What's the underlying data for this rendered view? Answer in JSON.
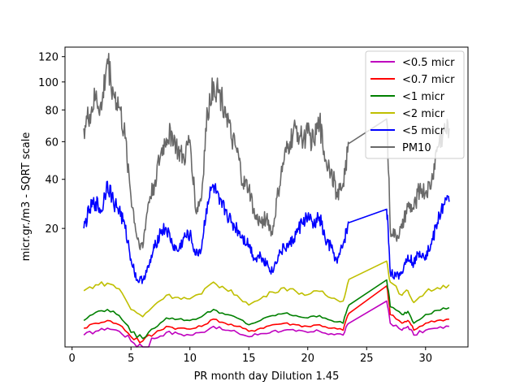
{
  "chart_data": {
    "type": "line",
    "xlabel": "PR month day  Dilution 1.45",
    "ylabel": "micr.gr./m3 - SQRT scale",
    "xlim": [
      -0.6,
      33.6
    ],
    "ylim": [
      0,
      128
    ],
    "y_scale": "sqrt",
    "x_ticks": [
      0,
      5,
      10,
      15,
      20,
      25,
      30
    ],
    "y_ticks": [
      20,
      40,
      60,
      80,
      100,
      120
    ],
    "grid": false,
    "legend_placement": "top-right",
    "series": [
      {
        "name": "<0.5 micr",
        "color": "#bf00bf",
        "x": [
          1,
          2,
          3,
          4,
          5,
          6,
          7,
          8,
          9,
          10,
          11,
          12,
          13,
          14,
          15,
          16,
          17,
          18,
          19,
          20,
          21,
          22,
          23,
          23.5,
          26.7,
          27,
          28,
          28.5,
          29,
          30,
          31,
          32
        ],
        "y": [
          0.2,
          0.35,
          0.5,
          0.35,
          0.05,
          0.0,
          0.1,
          0.3,
          0.25,
          0.2,
          0.3,
          0.6,
          0.4,
          0.3,
          0.15,
          0.25,
          0.35,
          0.4,
          0.35,
          0.3,
          0.35,
          0.25,
          0.2,
          0.8,
          3.0,
          0.8,
          0.4,
          0.6,
          0.2,
          0.4,
          0.5,
          0.6
        ]
      },
      {
        "name": "<0.7 micr",
        "color": "#ff0000",
        "x": [
          1,
          2,
          3,
          4,
          5,
          6,
          7,
          8,
          9,
          10,
          11,
          12,
          13,
          14,
          15,
          16,
          17,
          18,
          19,
          20,
          21,
          22,
          23,
          23.5,
          26.7,
          27,
          28,
          28.5,
          29,
          30,
          31,
          32
        ],
        "y": [
          0.5,
          0.8,
          1.0,
          0.7,
          0.15,
          0.05,
          0.25,
          0.6,
          0.5,
          0.45,
          0.6,
          1.1,
          0.8,
          0.6,
          0.35,
          0.5,
          0.7,
          0.8,
          0.7,
          0.6,
          0.7,
          0.5,
          0.4,
          1.6,
          5.3,
          1.5,
          0.8,
          1.0,
          0.4,
          0.8,
          1.0,
          1.1
        ]
      },
      {
        "name": "<1 micr",
        "color": "#008000",
        "x": [
          1,
          2,
          3,
          4,
          5,
          6,
          7,
          8,
          9,
          10,
          11,
          12,
          13,
          14,
          15,
          16,
          17,
          18,
          19,
          20,
          21,
          22,
          23,
          23.5,
          26.7,
          27,
          28,
          28.5,
          29,
          30,
          31,
          32
        ],
        "y": [
          1.0,
          1.7,
          2.0,
          1.4,
          0.3,
          0.1,
          0.5,
          1.2,
          1.1,
          1.0,
          1.3,
          2.0,
          1.5,
          1.2,
          0.7,
          1.0,
          1.4,
          1.6,
          1.4,
          1.2,
          1.4,
          1.0,
          0.8,
          2.5,
          6.4,
          2.3,
          1.5,
          1.8,
          0.8,
          1.5,
          1.9,
          2.2
        ]
      },
      {
        "name": "<2 micr",
        "color": "#bfbf00",
        "x": [
          1,
          2,
          3,
          4,
          5,
          6,
          7,
          8,
          9,
          10,
          11,
          12,
          13,
          14,
          15,
          16,
          17,
          18,
          19,
          20,
          21,
          22,
          23,
          23.5,
          26.7,
          27,
          28,
          28.5,
          29,
          30,
          31,
          32
        ],
        "y": [
          4.5,
          5.5,
          5.8,
          4.8,
          2.0,
          1.3,
          2.5,
          3.8,
          3.5,
          3.3,
          4.0,
          6.0,
          4.8,
          3.8,
          2.5,
          3.3,
          4.3,
          5.0,
          4.4,
          3.9,
          4.4,
          3.4,
          3.0,
          6.5,
          10.5,
          6.0,
          3.8,
          4.5,
          2.8,
          4.3,
          5.0,
          5.5
        ]
      },
      {
        "name": "<5 micr",
        "color": "#0000ff",
        "x": [
          1,
          1.5,
          2,
          2.5,
          3,
          3.5,
          4,
          4.5,
          5,
          5.5,
          6,
          6.5,
          7,
          7.5,
          8,
          8.5,
          9,
          9.5,
          10,
          10.5,
          11,
          11.5,
          12,
          12.5,
          13,
          13.5,
          14,
          14.5,
          15,
          15.5,
          16,
          16.5,
          17,
          17.5,
          18,
          18.5,
          19,
          19.5,
          20,
          20.5,
          21,
          21.5,
          22,
          22.5,
          23,
          23.5,
          26.7,
          27,
          27.5,
          28,
          28.5,
          29,
          29.5,
          30,
          30.5,
          31,
          31.5,
          32
        ],
        "y": [
          20,
          27,
          30,
          26,
          39,
          30,
          27,
          20,
          11,
          6.3,
          6.5,
          9,
          14,
          19,
          20,
          15,
          13,
          17,
          18,
          12,
          14,
          30,
          37,
          29,
          27,
          22,
          20,
          17,
          15,
          11,
          12,
          10,
          8,
          12,
          14,
          15,
          18,
          22,
          24,
          21,
          24,
          16,
          14,
          10,
          15,
          22,
          27,
          8,
          7,
          8,
          12,
          10,
          13,
          12,
          15,
          22,
          29,
          30
        ]
      },
      {
        "name": "PM10",
        "color": "#696969",
        "x": [
          1,
          1.5,
          2,
          2.5,
          3,
          3.5,
          4,
          4.5,
          5,
          5.5,
          6,
          6.5,
          7,
          7.5,
          8,
          8.5,
          9,
          9.5,
          10,
          10.5,
          11,
          11.5,
          12,
          12.5,
          13,
          13.5,
          14,
          14.5,
          15,
          15.5,
          16,
          16.5,
          17,
          17.5,
          18,
          18.5,
          19,
          19.5,
          20,
          20.5,
          21,
          21.5,
          22,
          22.5,
          23,
          23.5,
          26.7,
          27,
          27.5,
          28,
          28.5,
          29,
          29.5,
          30,
          30.5,
          31,
          31.5,
          32
        ],
        "y": [
          68,
          77,
          88,
          80,
          118,
          92,
          82,
          62,
          32,
          17,
          14,
          30,
          38,
          52,
          62,
          65,
          54,
          50,
          61,
          26,
          32,
          78,
          100,
          92,
          82,
          62,
          54,
          38,
          36,
          24,
          22,
          24,
          18,
          34,
          50,
          60,
          68,
          62,
          65,
          60,
          72,
          50,
          45,
          32,
          38,
          59,
          74,
          20,
          17,
          20,
          28,
          27,
          36,
          34,
          38,
          57,
          66,
          68
        ]
      }
    ]
  },
  "legend": {
    "entries": [
      "<0.5 micr",
      "<0.7 micr",
      "<1 micr",
      "<2 micr",
      "<5 micr",
      "PM10"
    ]
  }
}
